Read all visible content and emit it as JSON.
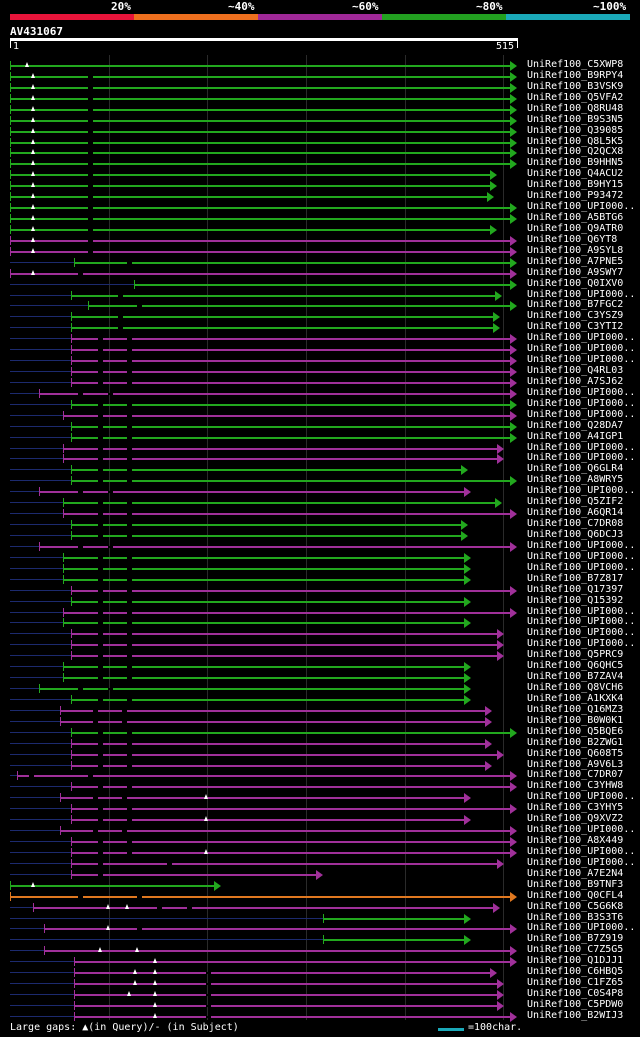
{
  "legend": {
    "items": [
      {
        "label": "20%",
        "color": "#e8143a"
      },
      {
        "label": "~40%",
        "color": "#ee6f1e"
      },
      {
        "label": "~60%",
        "color": "#a02898"
      },
      {
        "label": "~80%",
        "color": "#22a020"
      },
      {
        "label": "~100%",
        "color": "#1aa9b9"
      }
    ]
  },
  "query": {
    "title": "AV431067",
    "start": "1",
    "end": "515"
  },
  "colors": {
    "green": "#22a81e",
    "magenta": "#a0309a",
    "orange": "#e07820",
    "dark": "#1c2a6e"
  },
  "hits": [
    {
      "label": "UniRef100_C5XWP8",
      "color": "green",
      "start": 1,
      "end": 515,
      "q": [
        18
      ],
      "s": [],
      "dark_start": 1
    },
    {
      "label": "UniRef100_B9RPY4",
      "color": "green",
      "start": 1,
      "end": 515,
      "q": [
        24
      ],
      "s": [
        80
      ],
      "dark_start": 1
    },
    {
      "label": "UniRef100_B3VSK9",
      "color": "green",
      "start": 1,
      "end": 515,
      "q": [
        24
      ],
      "s": [
        80
      ],
      "dark_start": 1
    },
    {
      "label": "UniRef100_Q5VFA2",
      "color": "green",
      "start": 1,
      "end": 515,
      "q": [
        24
      ],
      "s": [
        80
      ],
      "dark_start": 1
    },
    {
      "label": "UniRef100_Q8RU48",
      "color": "green",
      "start": 1,
      "end": 515,
      "q": [
        24
      ],
      "s": [
        80
      ],
      "dark_start": 1
    },
    {
      "label": "UniRef100_B9S3N5",
      "color": "green",
      "start": 1,
      "end": 515,
      "q": [
        24
      ],
      "s": [
        80
      ],
      "dark_start": 1
    },
    {
      "label": "UniRef100_Q39085",
      "color": "green",
      "start": 1,
      "end": 515,
      "q": [
        24
      ],
      "s": [
        80
      ],
      "dark_start": 1
    },
    {
      "label": "UniRef100_Q8L5K5",
      "color": "green",
      "start": 1,
      "end": 515,
      "q": [
        24
      ],
      "s": [
        80
      ],
      "dark_start": 1
    },
    {
      "label": "UniRef100_Q2QCX8",
      "color": "green",
      "start": 1,
      "end": 515,
      "q": [
        24
      ],
      "s": [
        80
      ],
      "dark_start": 1
    },
    {
      "label": "UniRef100_B9HHN5",
      "color": "green",
      "start": 1,
      "end": 515,
      "q": [
        24
      ],
      "s": [
        80
      ],
      "dark_start": 1
    },
    {
      "label": "UniRef100_Q4ACU2",
      "color": "green",
      "start": 1,
      "end": 495,
      "q": [
        24
      ],
      "s": [
        80
      ],
      "dark_start": 1
    },
    {
      "label": "UniRef100_B9HY15",
      "color": "green",
      "start": 1,
      "end": 495,
      "q": [
        24
      ],
      "s": [
        80
      ],
      "dark_start": 1
    },
    {
      "label": "UniRef100_P93472",
      "color": "green",
      "start": 1,
      "end": 492,
      "q": [
        24
      ],
      "s": [
        80
      ],
      "dark_start": 1
    },
    {
      "label": "UniRef100_UPI000..",
      "color": "green",
      "start": 1,
      "end": 515,
      "q": [
        24
      ],
      "s": [
        80
      ],
      "dark_start": 1
    },
    {
      "label": "UniRef100_A5BTG6",
      "color": "green",
      "start": 1,
      "end": 515,
      "q": [
        24
      ],
      "s": [
        80
      ],
      "dark_start": 1
    },
    {
      "label": "UniRef100_Q9ATR0",
      "color": "green",
      "start": 1,
      "end": 495,
      "q": [
        24
      ],
      "s": [
        80
      ],
      "dark_start": 1
    },
    {
      "label": "UniRef100_Q6YT8",
      "color": "magenta",
      "start": 1,
      "end": 515,
      "q": [
        24
      ],
      "s": [
        80
      ],
      "dark_start": 1
    },
    {
      "label": "UniRef100_A9SYL8",
      "color": "magenta",
      "start": 1,
      "end": 515,
      "q": [
        24
      ],
      "s": [
        80
      ],
      "dark_start": 1
    },
    {
      "label": "UniRef100_A7PNE5",
      "color": "green",
      "start": 66,
      "end": 515,
      "q": [],
      "s": [
        120
      ],
      "dark_start": 1
    },
    {
      "label": "UniRef100_A9SWY7",
      "color": "magenta",
      "start": 1,
      "end": 515,
      "q": [
        24
      ],
      "s": [
        70
      ],
      "dark_start": 1
    },
    {
      "label": "UniRef100_Q0IXV0",
      "color": "green",
      "start": 127,
      "end": 515,
      "q": [],
      "s": [],
      "dark_start": 1
    },
    {
      "label": "UniRef100_UPI000..",
      "color": "green",
      "start": 63,
      "end": 500,
      "q": [],
      "s": [
        110
      ],
      "dark_start": 1
    },
    {
      "label": "UniRef100_B7FGC2",
      "color": "green",
      "start": 80,
      "end": 515,
      "q": [],
      "s": [
        130
      ],
      "dark_start": 1
    },
    {
      "label": "UniRef100_C3YSZ9",
      "color": "green",
      "start": 63,
      "end": 498,
      "q": [],
      "s": [
        110
      ],
      "dark_start": 1
    },
    {
      "label": "UniRef100_C3YTI2",
      "color": "green",
      "start": 63,
      "end": 498,
      "q": [],
      "s": [
        110
      ],
      "dark_start": 1
    },
    {
      "label": "UniRef100_UPI000..",
      "color": "magenta",
      "start": 63,
      "end": 515,
      "q": [],
      "s": [
        90,
        120
      ],
      "dark_start": 1
    },
    {
      "label": "UniRef100_UPI000..",
      "color": "magenta",
      "start": 63,
      "end": 515,
      "q": [],
      "s": [
        90,
        120
      ],
      "dark_start": 1
    },
    {
      "label": "UniRef100_UPI000..",
      "color": "magenta",
      "start": 63,
      "end": 515,
      "q": [],
      "s": [
        90,
        120
      ],
      "dark_start": 1
    },
    {
      "label": "UniRef100_Q4RL03",
      "color": "magenta",
      "start": 63,
      "end": 515,
      "q": [],
      "s": [
        90,
        120
      ],
      "dark_start": 1
    },
    {
      "label": "UniRef100_A7SJ62",
      "color": "magenta",
      "start": 63,
      "end": 515,
      "q": [],
      "s": [
        90,
        120
      ],
      "dark_start": 1
    },
    {
      "label": "UniRef100_UPI000..",
      "color": "magenta",
      "start": 30,
      "end": 515,
      "q": [],
      "s": [
        70,
        100
      ],
      "dark_start": 1
    },
    {
      "label": "UniRef100_UPI000..",
      "color": "green",
      "start": 63,
      "end": 515,
      "q": [],
      "s": [
        90,
        120
      ],
      "dark_start": 1
    },
    {
      "label": "UniRef100_UPI000..",
      "color": "magenta",
      "start": 55,
      "end": 515,
      "q": [],
      "s": [
        90,
        120
      ],
      "dark_start": 1
    },
    {
      "label": "UniRef100_Q28DA7",
      "color": "green",
      "start": 63,
      "end": 515,
      "q": [],
      "s": [
        90,
        120
      ],
      "dark_start": 1
    },
    {
      "label": "UniRef100_A4IGP1",
      "color": "green",
      "start": 63,
      "end": 515,
      "q": [],
      "s": [
        90,
        120
      ],
      "dark_start": 1
    },
    {
      "label": "UniRef100_UPI000..",
      "color": "magenta",
      "start": 55,
      "end": 502,
      "q": [],
      "s": [
        90,
        120
      ],
      "dark_start": 1
    },
    {
      "label": "UniRef100_UPI000..",
      "color": "magenta",
      "start": 55,
      "end": 502,
      "q": [],
      "s": [
        90,
        120
      ],
      "dark_start": 1
    },
    {
      "label": "UniRef100_Q6GLR4",
      "color": "green",
      "start": 63,
      "end": 465,
      "q": [],
      "s": [
        90,
        120
      ],
      "dark_start": 1
    },
    {
      "label": "UniRef100_A8WRY5",
      "color": "green",
      "start": 63,
      "end": 515,
      "q": [],
      "s": [
        90,
        120
      ],
      "dark_start": 1
    },
    {
      "label": "UniRef100_UPI000..",
      "color": "magenta",
      "start": 30,
      "end": 468,
      "q": [],
      "s": [
        70,
        100
      ],
      "dark_start": 1
    },
    {
      "label": "UniRef100_Q5ZIF2",
      "color": "green",
      "start": 55,
      "end": 500,
      "q": [],
      "s": [
        90,
        120
      ],
      "dark_start": 1
    },
    {
      "label": "UniRef100_A6QR14",
      "color": "magenta",
      "start": 55,
      "end": 515,
      "q": [],
      "s": [
        90,
        120
      ],
      "dark_start": 1
    },
    {
      "label": "UniRef100_C7DR08",
      "color": "green",
      "start": 63,
      "end": 465,
      "q": [],
      "s": [
        90,
        120
      ],
      "dark_start": 1
    },
    {
      "label": "UniRef100_Q6DCJ3",
      "color": "green",
      "start": 63,
      "end": 465,
      "q": [],
      "s": [
        90,
        120
      ],
      "dark_start": 1
    },
    {
      "label": "UniRef100_UPI000..",
      "color": "magenta",
      "start": 30,
      "end": 515,
      "q": [],
      "s": [
        70,
        100
      ],
      "dark_start": 1
    },
    {
      "label": "UniRef100_UPI000..",
      "color": "green",
      "start": 55,
      "end": 468,
      "q": [],
      "s": [
        90,
        120
      ],
      "dark_start": 1
    },
    {
      "label": "UniRef100_UPI000..",
      "color": "green",
      "start": 55,
      "end": 468,
      "q": [],
      "s": [
        90,
        120
      ],
      "dark_start": 1
    },
    {
      "label": "UniRef100_B7Z817",
      "color": "green",
      "start": 55,
      "end": 468,
      "q": [],
      "s": [
        90,
        120
      ],
      "dark_start": 1
    },
    {
      "label": "UniRef100_Q17397",
      "color": "magenta",
      "start": 63,
      "end": 515,
      "q": [],
      "s": [
        90,
        120
      ],
      "dark_start": 1
    },
    {
      "label": "UniRef100_Q15392",
      "color": "green",
      "start": 63,
      "end": 468,
      "q": [],
      "s": [
        90,
        120
      ],
      "dark_start": 1
    },
    {
      "label": "UniRef100_UPI000..",
      "color": "magenta",
      "start": 55,
      "end": 515,
      "q": [],
      "s": [
        90,
        120
      ],
      "dark_start": 1
    },
    {
      "label": "UniRef100_UPI000..",
      "color": "green",
      "start": 55,
      "end": 468,
      "q": [],
      "s": [
        90,
        120
      ],
      "dark_start": 1
    },
    {
      "label": "UniRef100_UPI000..",
      "color": "magenta",
      "start": 63,
      "end": 502,
      "q": [],
      "s": [
        90,
        120
      ],
      "dark_start": 1
    },
    {
      "label": "UniRef100_UPI000..",
      "color": "magenta",
      "start": 63,
      "end": 502,
      "q": [],
      "s": [
        90,
        120
      ],
      "dark_start": 1
    },
    {
      "label": "UniRef100_Q5PRC9",
      "color": "magenta",
      "start": 63,
      "end": 502,
      "q": [],
      "s": [
        90,
        120
      ],
      "dark_start": 1
    },
    {
      "label": "UniRef100_Q6QHC5",
      "color": "green",
      "start": 55,
      "end": 468,
      "q": [],
      "s": [
        90,
        120
      ],
      "dark_start": 1
    },
    {
      "label": "UniRef100_B7ZAV4",
      "color": "green",
      "start": 55,
      "end": 468,
      "q": [],
      "s": [
        90,
        120
      ],
      "dark_start": 1
    },
    {
      "label": "UniRef100_Q8VCH6",
      "color": "green",
      "start": 30,
      "end": 468,
      "q": [],
      "s": [
        70,
        100
      ],
      "dark_start": 1
    },
    {
      "label": "UniRef100_A1KXK4",
      "color": "green",
      "start": 63,
      "end": 468,
      "q": [],
      "s": [
        90,
        120
      ],
      "dark_start": 1
    },
    {
      "label": "UniRef100_Q16MZ3",
      "color": "magenta",
      "start": 52,
      "end": 490,
      "q": [],
      "s": [
        85,
        115
      ],
      "dark_start": 1
    },
    {
      "label": "UniRef100_B0W0K1",
      "color": "magenta",
      "start": 52,
      "end": 490,
      "q": [],
      "s": [
        85,
        115
      ],
      "dark_start": 1
    },
    {
      "label": "UniRef100_Q5BQE6",
      "color": "green",
      "start": 63,
      "end": 515,
      "q": [],
      "s": [
        90,
        120
      ],
      "dark_start": 1
    },
    {
      "label": "UniRef100_B2ZWG1",
      "color": "magenta",
      "start": 63,
      "end": 490,
      "q": [],
      "s": [
        90,
        120
      ],
      "dark_start": 1
    },
    {
      "label": "UniRef100_Q608T5",
      "color": "magenta",
      "start": 63,
      "end": 502,
      "q": [],
      "s": [
        90,
        120
      ],
      "dark_start": 1
    },
    {
      "label": "UniRef100_A9V6L3",
      "color": "magenta",
      "start": 63,
      "end": 490,
      "q": [],
      "s": [
        90,
        120
      ],
      "dark_start": 1
    },
    {
      "label": "UniRef100_C7DR07",
      "color": "magenta",
      "start": 8,
      "end": 515,
      "q": [],
      "s": [
        20,
        80
      ],
      "dark_start": 1
    },
    {
      "label": "UniRef100_C3YHW8",
      "color": "magenta",
      "start": 63,
      "end": 515,
      "q": [],
      "s": [
        90,
        120
      ],
      "dark_start": 1
    },
    {
      "label": "UniRef100_UPI000..",
      "color": "magenta",
      "start": 52,
      "end": 468,
      "q": [
        200
      ],
      "s": [
        85,
        115
      ],
      "dark_start": 1
    },
    {
      "label": "UniRef100_C3YHY5",
      "color": "magenta",
      "start": 63,
      "end": 515,
      "q": [],
      "s": [
        90,
        120
      ],
      "dark_start": 1
    },
    {
      "label": "UniRef100_Q9XVZ2",
      "color": "magenta",
      "start": 63,
      "end": 468,
      "q": [
        200
      ],
      "s": [
        90,
        120
      ],
      "dark_start": 1
    },
    {
      "label": "UniRef100_UPI000..",
      "color": "magenta",
      "start": 52,
      "end": 515,
      "q": [],
      "s": [
        85,
        115
      ],
      "dark_start": 1
    },
    {
      "label": "UniRef100_A8X449",
      "color": "magenta",
      "start": 63,
      "end": 515,
      "q": [],
      "s": [
        90,
        120
      ],
      "dark_start": 1
    },
    {
      "label": "UniRef100_UPI000..",
      "color": "magenta",
      "start": 63,
      "end": 515,
      "q": [
        200
      ],
      "s": [
        90,
        120
      ],
      "dark_start": 1
    },
    {
      "label": "UniRef100_UPI000..",
      "color": "magenta",
      "start": 63,
      "end": 502,
      "q": [],
      "s": [
        90,
        160
      ],
      "dark_start": 1
    },
    {
      "label": "UniRef100_A7E2N4",
      "color": "magenta",
      "start": 63,
      "end": 318,
      "q": [],
      "s": [
        90
      ],
      "dark_start": 1
    },
    {
      "label": "UniRef100_B9TNF3",
      "color": "green",
      "start": 1,
      "end": 215,
      "q": [
        24
      ],
      "s": [],
      "dark_start": 1
    },
    {
      "label": "UniRef100_Q0CFL4",
      "color": "orange",
      "start": 1,
      "end": 515,
      "q": [],
      "s": [
        70,
        130
      ],
      "dark_start": 1
    },
    {
      "label": "UniRef100_C5G6K8",
      "color": "magenta",
      "start": 24,
      "end": 498,
      "q": [
        100,
        120
      ],
      "s": [
        150,
        180
      ],
      "dark_start": 1
    },
    {
      "label": "UniRef100_B3S3T6",
      "color": "green",
      "start": 318,
      "end": 468,
      "q": [],
      "s": [],
      "dark_start": 1
    },
    {
      "label": "UniRef100_UPI000..",
      "color": "magenta",
      "start": 35,
      "end": 515,
      "q": [
        100
      ],
      "s": [
        130
      ],
      "dark_start": 1
    },
    {
      "label": "UniRef100_B7Z919",
      "color": "green",
      "start": 318,
      "end": 468,
      "q": [],
      "s": [],
      "dark_start": 1
    },
    {
      "label": "UniRef100_C7Z5G5",
      "color": "magenta",
      "start": 35,
      "end": 515,
      "q": [
        92,
        130
      ],
      "s": [],
      "dark_start": 1
    },
    {
      "label": "UniRef100_Q1DJJ1",
      "color": "magenta",
      "start": 66,
      "end": 515,
      "q": [
        148
      ],
      "s": [],
      "dark_start": 1
    },
    {
      "label": "UniRef100_C6HBQ5",
      "color": "magenta",
      "start": 66,
      "end": 495,
      "q": [
        128,
        148
      ],
      "s": [
        200
      ],
      "dark_start": 1
    },
    {
      "label": "UniRef100_C1FZ65",
      "color": "magenta",
      "start": 66,
      "end": 502,
      "q": [
        128,
        148
      ],
      "s": [
        200
      ],
      "dark_start": 1
    },
    {
      "label": "UniRef100_C0S4P8",
      "color": "magenta",
      "start": 66,
      "end": 502,
      "q": [
        122,
        148
      ],
      "s": [
        200
      ],
      "dark_start": 1
    },
    {
      "label": "UniRef100_C5PDW0",
      "color": "magenta",
      "start": 66,
      "end": 502,
      "q": [
        148
      ],
      "s": [
        200
      ],
      "dark_start": 1
    },
    {
      "label": "UniRef100_B2WIJ3",
      "color": "magenta",
      "start": 66,
      "end": 515,
      "q": [
        148
      ],
      "s": [
        200
      ],
      "dark_start": 1
    }
  ],
  "footer": {
    "gaps_label": "Large gaps: ▲(in Query)/- (in Subject)",
    "scale_label": "=100char."
  }
}
